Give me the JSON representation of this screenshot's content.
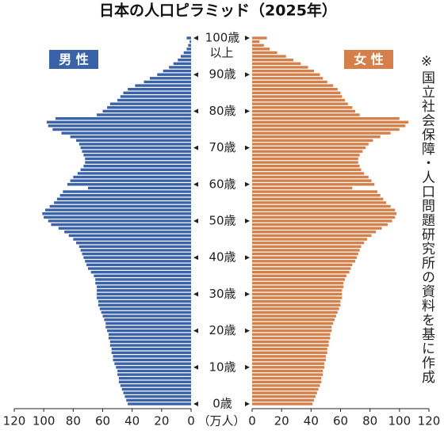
{
  "chart_data": {
    "type": "pyramid",
    "title": "日本の人口ピラミッド（2025年）",
    "categories": [
      "0歳",
      null,
      null,
      null,
      null,
      null,
      null,
      null,
      null,
      null,
      "10歳",
      null,
      null,
      null,
      null,
      null,
      null,
      null,
      null,
      null,
      "20歳",
      null,
      null,
      null,
      null,
      null,
      null,
      null,
      null,
      null,
      "30歳",
      null,
      null,
      null,
      null,
      null,
      null,
      null,
      null,
      null,
      "40歳",
      null,
      null,
      null,
      null,
      null,
      null,
      null,
      null,
      null,
      "50歳",
      null,
      null,
      null,
      null,
      null,
      null,
      null,
      null,
      null,
      "60歳",
      null,
      null,
      null,
      null,
      null,
      null,
      null,
      null,
      null,
      "70歳",
      null,
      null,
      null,
      null,
      null,
      null,
      null,
      null,
      null,
      "80歳",
      null,
      null,
      null,
      null,
      null,
      null,
      null,
      null,
      null,
      "90歳",
      null,
      null,
      null,
      null,
      null,
      null,
      null,
      null,
      null,
      "100歳"
    ],
    "top_age_suffix": "以上",
    "series": [
      {
        "name": "男 性",
        "color": "#3a62a8",
        "side": "left",
        "values": [
          43,
          44,
          45,
          46,
          47,
          48,
          49,
          49,
          50,
          50,
          51,
          52,
          53,
          53,
          54,
          54,
          55,
          55,
          56,
          56,
          57,
          58,
          58,
          59,
          60,
          61,
          62,
          63,
          63,
          64,
          64,
          64,
          64,
          65,
          65,
          66,
          68,
          70,
          71,
          72,
          73,
          74,
          75,
          76,
          78,
          80,
          83,
          86,
          90,
          95,
          97,
          100,
          101,
          99,
          96,
          93,
          91,
          89,
          87,
          70,
          84,
          82,
          80,
          77,
          75,
          73,
          72,
          72,
          73,
          74,
          75,
          76,
          78,
          82,
          88,
          94,
          97,
          98,
          92,
          64,
          60,
          57,
          55,
          50,
          48,
          46,
          43,
          38,
          32,
          28,
          23,
          19,
          15,
          12,
          9,
          7,
          5,
          3,
          2,
          1,
          3
        ]
      },
      {
        "name": "女 性",
        "color": "#d5804a",
        "side": "right",
        "values": [
          41,
          42,
          43,
          44,
          45,
          46,
          47,
          47,
          48,
          48,
          49,
          49,
          50,
          50,
          51,
          51,
          52,
          52,
          53,
          53,
          54,
          54,
          55,
          56,
          57,
          58,
          59,
          60,
          60,
          61,
          61,
          61,
          62,
          62,
          63,
          64,
          66,
          67,
          68,
          70,
          71,
          72,
          73,
          74,
          76,
          78,
          81,
          84,
          88,
          92,
          95,
          97,
          98,
          97,
          94,
          91,
          89,
          87,
          85,
          68,
          83,
          81,
          79,
          76,
          74,
          73,
          72,
          72,
          73,
          75,
          77,
          79,
          82,
          87,
          94,
          100,
          104,
          106,
          100,
          73,
          70,
          68,
          65,
          63,
          61,
          60,
          58,
          55,
          51,
          48,
          46,
          42,
          38,
          33,
          28,
          23,
          17,
          12,
          8,
          5,
          10
        ]
      }
    ],
    "xlim": [
      0,
      120
    ],
    "xticks": [
      0,
      20,
      40,
      60,
      80,
      100,
      120
    ],
    "unit": "（万人）",
    "note": "※国立社会保障・人口問題研究所の資料を基に作成"
  }
}
